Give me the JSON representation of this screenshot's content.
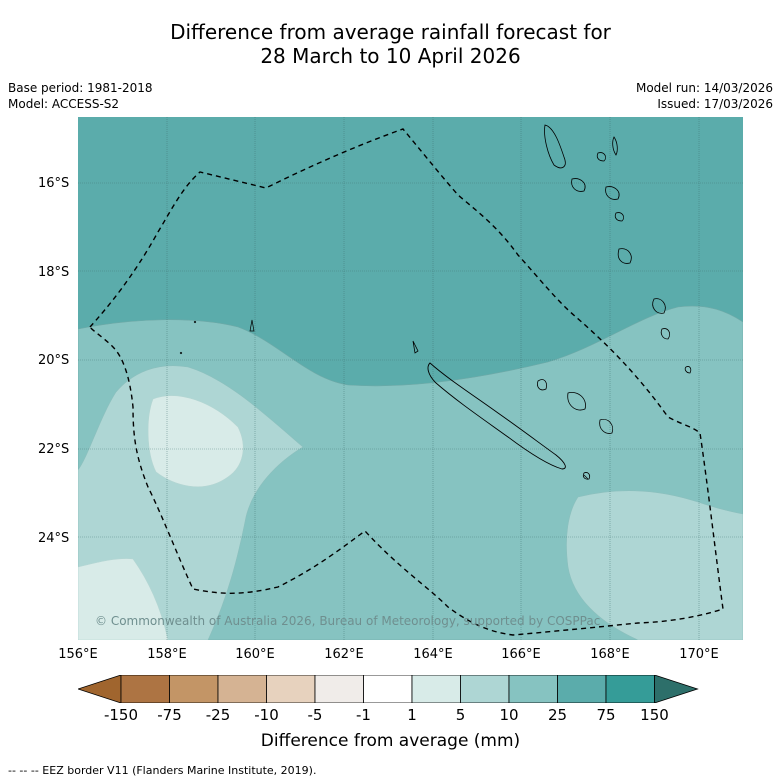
{
  "title": {
    "line1": "Difference from average rainfall forecast for",
    "line2": "28 March to 10 April 2026"
  },
  "meta": {
    "base_period": "Base period: 1981-2018",
    "model": "Model: ACCESS-S2",
    "model_run": "Model run: 14/03/2026",
    "issued": "Issued: 17/03/2026"
  },
  "axes": {
    "lat_labels": [
      "16°S",
      "18°S",
      "20°S",
      "22°S",
      "24°S"
    ],
    "lon_labels": [
      "156°E",
      "158°E",
      "160°E",
      "162°E",
      "164°E",
      "166°E",
      "168°E",
      "170°E"
    ]
  },
  "copyright": "© Commonwealth of Australia 2026, Bureau of Meteorology, supported by COSPPac",
  "colorbar": {
    "ticks": [
      "-150",
      "-75",
      "-25",
      "-10",
      "-5",
      "-1",
      "1",
      "5",
      "10",
      "25",
      "75",
      "150"
    ],
    "colors": [
      "#a0652e",
      "#ad7443",
      "#c39566",
      "#d5b393",
      "#e7d2be",
      "#f0ece9",
      "#ffffff",
      "#d8ebe8",
      "#aed6d4",
      "#86c3c1",
      "#5bacab",
      "#359c98",
      "#2d6f6a"
    ],
    "label": "Difference from average (mm)"
  },
  "footer": "-- -- -- EEZ border V11 (Flanders Marine Institute, 2019)."
}
